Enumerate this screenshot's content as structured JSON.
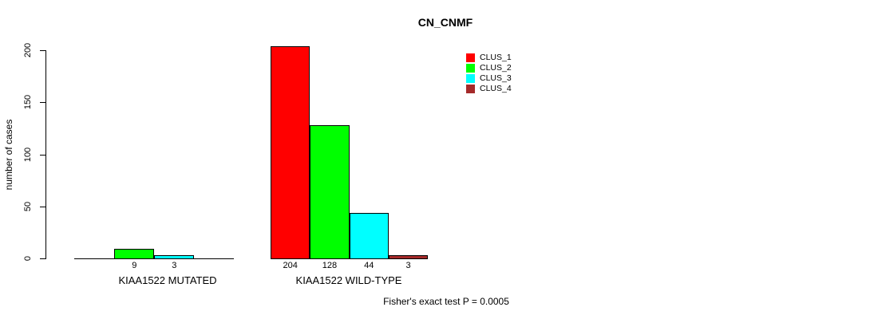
{
  "title": "CN_CNMF",
  "subtitle": "Fisher's exact test P = 0.0005",
  "y_axis": {
    "label": "number of cases",
    "ticks": [
      0,
      50,
      100,
      150,
      200
    ]
  },
  "legend": [
    {
      "label": "CLUS_1",
      "color": "#FF0000"
    },
    {
      "label": "CLUS_2",
      "color": "#00FF00"
    },
    {
      "label": "CLUS_3",
      "color": "#00FFFF"
    },
    {
      "label": "CLUS_4",
      "color": "#A52A2A"
    }
  ],
  "chart_data": {
    "type": "bar",
    "title": "CN_CNMF",
    "xlabel": "",
    "ylabel": "number of cases",
    "ylim": [
      0,
      200
    ],
    "grid": false,
    "legend_position": "top-right",
    "categories": [
      "KIAA1522 MUTATED",
      "KIAA1522 WILD-TYPE"
    ],
    "series": [
      {
        "name": "CLUS_1",
        "color": "#FF0000",
        "values": [
          0,
          204
        ]
      },
      {
        "name": "CLUS_2",
        "color": "#00FF00",
        "values": [
          9,
          128
        ]
      },
      {
        "name": "CLUS_3",
        "color": "#00FFFF",
        "values": [
          3,
          44
        ]
      },
      {
        "name": "CLUS_4",
        "color": "#A52A2A",
        "values": [
          0,
          3
        ]
      }
    ],
    "bar_value_labels": [
      [
        "",
        "9",
        "3",
        ""
      ],
      [
        "204",
        "128",
        "44",
        "3"
      ]
    ],
    "annotation": "Fisher's exact test P = 0.0005"
  }
}
